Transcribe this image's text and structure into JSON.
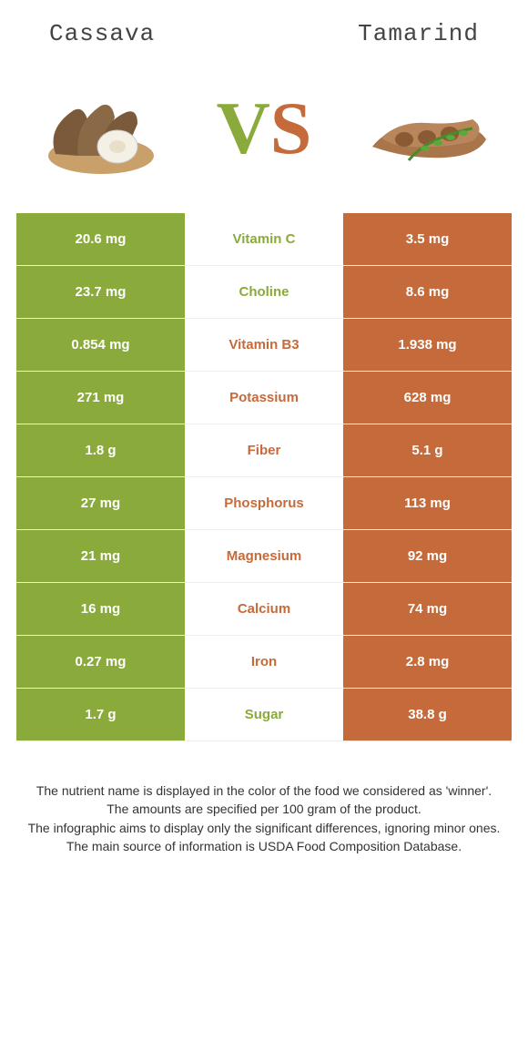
{
  "header": {
    "left_title": "Cassava",
    "right_title": "Tamarind"
  },
  "vs": {
    "v_letter": "V",
    "s_letter": "S",
    "v_color": "#8aaa3b",
    "s_color": "#c56a3a"
  },
  "colors": {
    "left_bar": "#8aaa3b",
    "right_bar": "#c56a3a",
    "row_border": "#eeeeee",
    "background": "#ffffff",
    "footnote_text": "#333333"
  },
  "table": {
    "rows": [
      {
        "left": "20.6 mg",
        "label": "Vitamin C",
        "right": "3.5 mg",
        "winner": "left"
      },
      {
        "left": "23.7 mg",
        "label": "Choline",
        "right": "8.6 mg",
        "winner": "left"
      },
      {
        "left": "0.854 mg",
        "label": "Vitamin B3",
        "right": "1.938 mg",
        "winner": "right"
      },
      {
        "left": "271 mg",
        "label": "Potassium",
        "right": "628 mg",
        "winner": "right"
      },
      {
        "left": "1.8 g",
        "label": "Fiber",
        "right": "5.1 g",
        "winner": "right"
      },
      {
        "left": "27 mg",
        "label": "Phosphorus",
        "right": "113 mg",
        "winner": "right"
      },
      {
        "left": "21 mg",
        "label": "Magnesium",
        "right": "92 mg",
        "winner": "right"
      },
      {
        "left": "16 mg",
        "label": "Calcium",
        "right": "74 mg",
        "winner": "right"
      },
      {
        "left": "0.27 mg",
        "label": "Iron",
        "right": "2.8 mg",
        "winner": "right"
      },
      {
        "left": "1.7 g",
        "label": "Sugar",
        "right": "38.8 g",
        "winner": "left"
      }
    ]
  },
  "footnotes": [
    "The nutrient name is displayed in the color of the food we considered as 'winner'.",
    "The amounts are specified per 100 gram of the product.",
    "The infographic aims to display only the significant differences, ignoring minor ones.",
    "The main source of information is USDA Food Composition Database."
  ]
}
